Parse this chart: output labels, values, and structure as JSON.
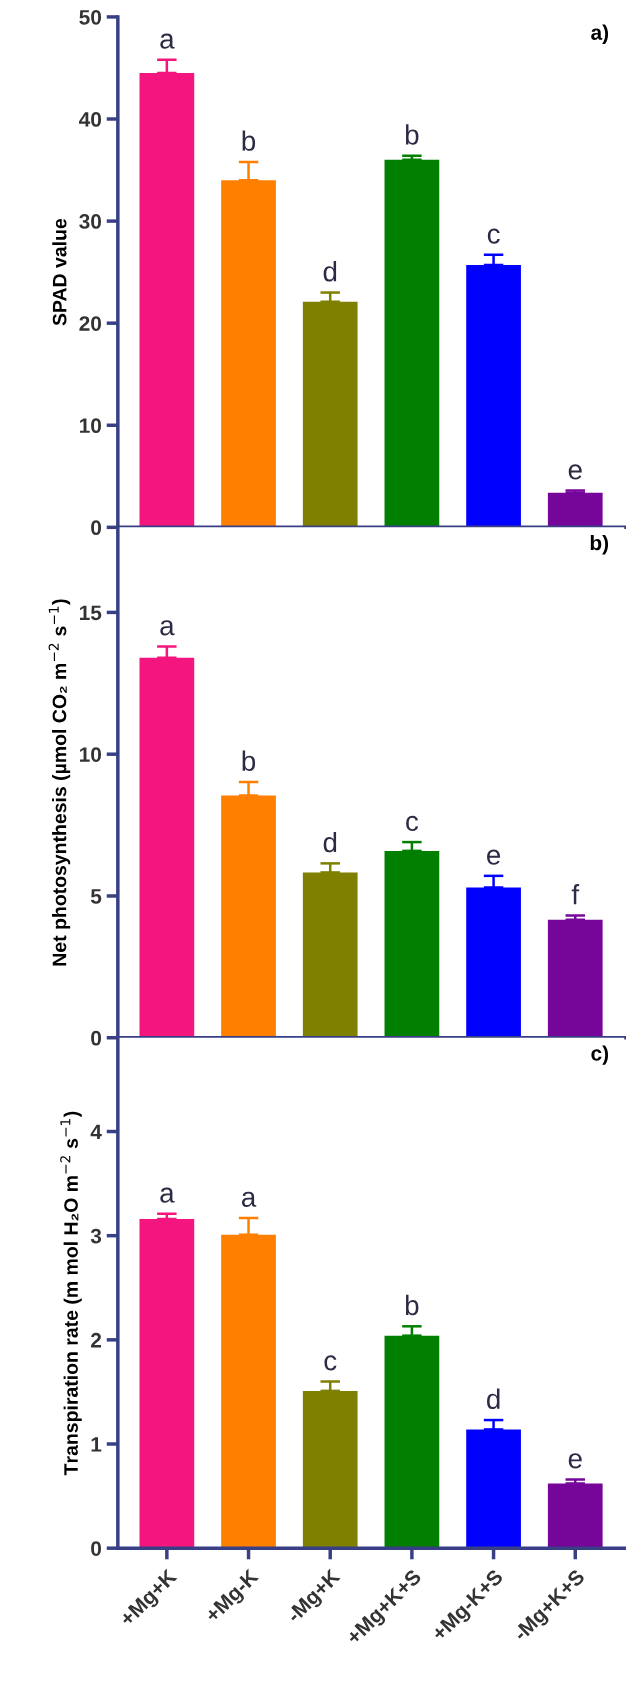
{
  "chart_data": [
    {
      "type": "bar",
      "title": "a)",
      "ylabel": "SPAD value",
      "categories": [
        "+Mg+K",
        "+Mg-K",
        "-Mg+K",
        "+Mg+K+S",
        "+Mg-K+S",
        "-Mg+K+S"
      ],
      "values": [
        44.5,
        34.0,
        22.1,
        36.0,
        25.7,
        3.4
      ],
      "colors": [
        "#f5157f",
        "#ff7f00",
        "#7f7f00",
        "#007f00",
        "#0000ff",
        "#76069a"
      ],
      "errors": [
        [
          44.5,
          45.8
        ],
        [
          34.0,
          35.8
        ],
        [
          22.1,
          23.0
        ],
        [
          36.0,
          36.4
        ],
        [
          25.7,
          26.7
        ],
        [
          3.4,
          3.6
        ]
      ],
      "ylim": [
        0,
        50
      ],
      "yticks": [
        0,
        10,
        20,
        30,
        40,
        50
      ],
      "grid": false,
      "tick_labels": "y",
      "annotations": [
        {
          "text": "a",
          "x": "+Mg+K",
          "y": 45.8
        },
        {
          "text": "b",
          "x": "+Mg-K",
          "y": 35.8
        },
        {
          "text": "d",
          "x": "-Mg+K",
          "y": 23.0
        },
        {
          "text": "b",
          "x": "+Mg+K+S",
          "y": 36.4
        },
        {
          "text": "c",
          "x": "+Mg-K+S",
          "y": 26.7
        },
        {
          "text": "e",
          "x": "-Mg+K+S",
          "y": 3.6
        }
      ]
    },
    {
      "type": "bar",
      "title": "b)",
      "ylabel": "Net photosynthesis (µmol CO₂ m$^{−2}$ s$^{−1}$)",
      "categories": [
        "+Mg+K",
        "+Mg-K",
        "-Mg+K",
        "+Mg+K+S",
        "+Mg-K+S",
        "-Mg+K+S"
      ],
      "values": [
        13.4,
        8.54,
        5.83,
        6.59,
        5.3,
        4.16
      ],
      "colors": [
        "#f5157f",
        "#ff7f00",
        "#7f7f00",
        "#007f00",
        "#0000ff",
        "#76069a"
      ],
      "errors": [
        [
          13.4,
          13.8
        ],
        [
          8.54,
          9.02
        ],
        [
          5.83,
          6.15
        ],
        [
          6.59,
          6.9
        ],
        [
          5.3,
          5.71
        ],
        [
          4.16,
          4.31
        ]
      ],
      "ylim": [
        0,
        18
      ],
      "yticks": [
        0,
        5,
        10,
        15
      ],
      "grid": false,
      "tick_labels": "y",
      "annotations": [
        {
          "text": "a",
          "x": "+Mg+K",
          "y": 13.8
        },
        {
          "text": "b",
          "x": "+Mg-K",
          "y": 9.02
        },
        {
          "text": "d",
          "x": "-Mg+K",
          "y": 6.15
        },
        {
          "text": "c",
          "x": "+Mg+K+S",
          "y": 6.9
        },
        {
          "text": "e",
          "x": "+Mg-K+S",
          "y": 5.71
        },
        {
          "text": "f",
          "x": "-Mg+K+S",
          "y": 4.31
        }
      ]
    },
    {
      "type": "bar",
      "title": "c)",
      "ylabel": "Transpiration rate (m mol H₂O m$^{−2}$ s$^{−1}$)",
      "categories": [
        "+Mg+K",
        "+Mg-K",
        "-Mg+K",
        "+Mg+K+S",
        "+Mg-K+S",
        "-Mg+K+S"
      ],
      "values": [
        3.16,
        3.01,
        1.51,
        2.04,
        1.14,
        0.62
      ],
      "colors": [
        "#f5157f",
        "#ff7f00",
        "#7f7f00",
        "#007f00",
        "#0000ff",
        "#76069a"
      ],
      "errors": [
        [
          3.16,
          3.21
        ],
        [
          3.01,
          3.17
        ],
        [
          1.51,
          1.6
        ],
        [
          2.04,
          2.13
        ],
        [
          1.14,
          1.23
        ],
        [
          0.62,
          0.66
        ]
      ],
      "ylim": [
        0,
        4.9
      ],
      "yticks": [
        0,
        1,
        2,
        3,
        4
      ],
      "grid": false,
      "annotations": [
        {
          "text": "a",
          "x": "+Mg+K",
          "y": 3.21
        },
        {
          "text": "a",
          "x": "+Mg-K",
          "y": 3.17
        },
        {
          "text": "c",
          "x": "-Mg+K",
          "y": 1.6
        },
        {
          "text": "b",
          "x": "+Mg+K+S",
          "y": 2.13
        },
        {
          "text": "d",
          "x": "+Mg-K+S",
          "y": 1.23
        },
        {
          "text": "e",
          "x": "-Mg+K+S",
          "y": 0.66
        }
      ]
    }
  ]
}
